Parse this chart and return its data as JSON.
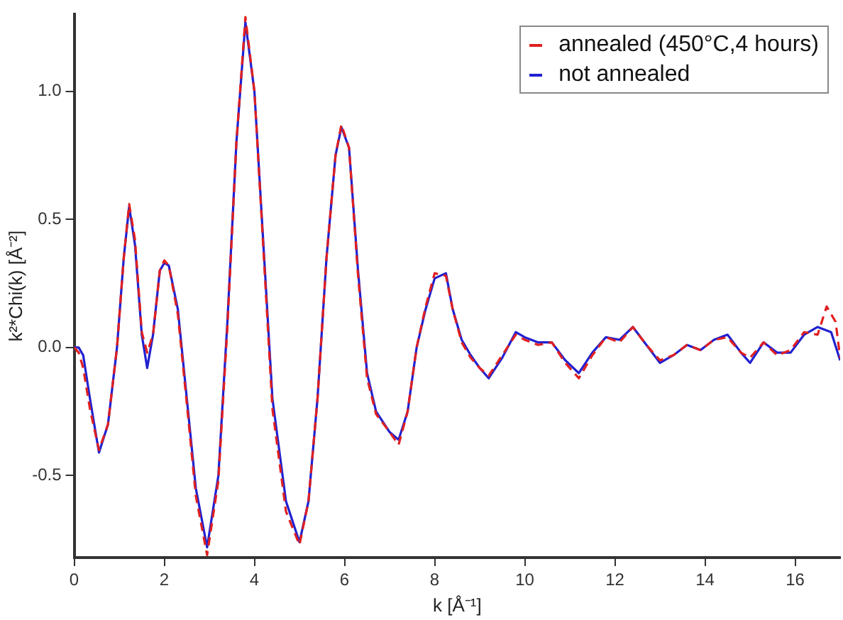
{
  "chart_data": {
    "type": "line",
    "xlabel": "k [Å⁻¹]",
    "ylabel": "k²*Chi(k) [Å⁻²]",
    "xlim": [
      0,
      17
    ],
    "xticks": [
      0,
      2,
      4,
      6,
      8,
      10,
      12,
      14,
      16
    ],
    "ylim": [
      -0.82,
      1.3
    ],
    "yticks": [
      -0.5,
      {
        "value": 0,
        "label": "0.0"
      },
      0.5,
      {
        "value": 1,
        "label": "1.0"
      }
    ],
    "grid": false,
    "legend": "top right",
    "marker": "none",
    "series": [
      {
        "name": "annealed (450°C,4 hours)",
        "color": "#e02020",
        "line_style": "dashed",
        "x": [
          0,
          0.1,
          0.2,
          0.35,
          0.55,
          0.75,
          0.95,
          1.1,
          1.22,
          1.35,
          1.5,
          1.62,
          1.75,
          1.9,
          2.0,
          2.1,
          2.3,
          2.5,
          2.7,
          2.95,
          3.2,
          3.4,
          3.6,
          3.8,
          4.0,
          4.2,
          4.4,
          4.7,
          5.0,
          5.2,
          5.4,
          5.6,
          5.8,
          5.93,
          6.1,
          6.3,
          6.5,
          6.7,
          7.0,
          7.2,
          7.4,
          7.6,
          7.8,
          8.0,
          8.25,
          8.4,
          8.6,
          8.8,
          9.0,
          9.2,
          9.5,
          9.8,
          10.0,
          10.3,
          10.6,
          10.9,
          11.2,
          11.5,
          11.8,
          12.1,
          12.4,
          12.7,
          13.0,
          13.3,
          13.6,
          13.9,
          14.2,
          14.5,
          14.8,
          15.0,
          15.3,
          15.6,
          15.9,
          16.2,
          16.5,
          16.7,
          16.9,
          17.0
        ],
        "values": [
          0,
          -0.02,
          -0.08,
          -0.24,
          -0.4,
          -0.3,
          0.0,
          0.35,
          0.56,
          0.42,
          0.06,
          -0.02,
          0.05,
          0.3,
          0.34,
          0.32,
          0.13,
          -0.22,
          -0.58,
          -0.81,
          -0.52,
          0.08,
          0.8,
          1.29,
          1.0,
          0.38,
          -0.24,
          -0.64,
          -0.77,
          -0.6,
          -0.2,
          0.35,
          0.75,
          0.87,
          0.78,
          0.28,
          -0.12,
          -0.26,
          -0.33,
          -0.38,
          -0.25,
          0.0,
          0.16,
          0.29,
          0.28,
          0.15,
          0.02,
          -0.04,
          -0.08,
          -0.11,
          -0.03,
          0.05,
          0.03,
          0.01,
          0.02,
          -0.06,
          -0.12,
          -0.03,
          0.04,
          0.02,
          0.08,
          0.01,
          -0.05,
          -0.03,
          0.01,
          -0.01,
          0.03,
          0.04,
          -0.02,
          -0.04,
          0.02,
          -0.03,
          -0.01,
          0.06,
          0.05,
          0.16,
          0.1,
          -0.04
        ]
      },
      {
        "name": "not annealed",
        "color": "#2020d0",
        "line_style": "solid",
        "x": [
          0,
          0.1,
          0.2,
          0.35,
          0.55,
          0.75,
          0.95,
          1.1,
          1.22,
          1.35,
          1.5,
          1.62,
          1.75,
          1.9,
          2.0,
          2.1,
          2.3,
          2.5,
          2.7,
          2.95,
          3.2,
          3.4,
          3.6,
          3.8,
          4.0,
          4.2,
          4.4,
          4.7,
          5.0,
          5.2,
          5.4,
          5.6,
          5.8,
          5.93,
          6.1,
          6.3,
          6.5,
          6.7,
          7.0,
          7.2,
          7.4,
          7.6,
          7.8,
          8.0,
          8.25,
          8.4,
          8.6,
          8.8,
          9.0,
          9.2,
          9.5,
          9.8,
          10.0,
          10.3,
          10.6,
          10.9,
          11.2,
          11.5,
          11.8,
          12.1,
          12.4,
          12.7,
          13.0,
          13.3,
          13.6,
          13.9,
          14.2,
          14.5,
          14.8,
          15.0,
          15.3,
          15.6,
          15.9,
          16.2,
          16.5,
          16.8,
          17.0
        ],
        "values": [
          0,
          0,
          -0.03,
          -0.2,
          -0.41,
          -0.3,
          0.0,
          0.35,
          0.55,
          0.4,
          0.05,
          -0.08,
          0.05,
          0.3,
          0.33,
          0.32,
          0.15,
          -0.2,
          -0.55,
          -0.78,
          -0.5,
          0.1,
          0.8,
          1.27,
          1.0,
          0.4,
          -0.2,
          -0.6,
          -0.76,
          -0.6,
          -0.2,
          0.35,
          0.75,
          0.86,
          0.78,
          0.3,
          -0.1,
          -0.25,
          -0.33,
          -0.36,
          -0.25,
          0.0,
          0.15,
          0.27,
          0.29,
          0.15,
          0.03,
          -0.03,
          -0.08,
          -0.12,
          -0.04,
          0.06,
          0.04,
          0.02,
          0.02,
          -0.05,
          -0.1,
          -0.02,
          0.04,
          0.03,
          0.08,
          0.01,
          -0.06,
          -0.03,
          0.01,
          -0.01,
          0.03,
          0.05,
          -0.02,
          -0.06,
          0.02,
          -0.02,
          -0.02,
          0.05,
          0.08,
          0.06,
          -0.05
        ]
      }
    ]
  }
}
